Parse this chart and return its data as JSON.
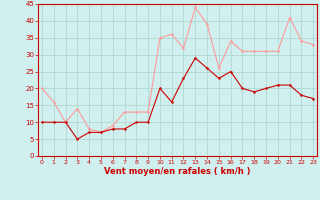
{
  "x": [
    0,
    1,
    2,
    3,
    4,
    5,
    6,
    7,
    8,
    9,
    10,
    11,
    12,
    13,
    14,
    15,
    16,
    17,
    18,
    19,
    20,
    21,
    22,
    23
  ],
  "wind_mean": [
    10,
    10,
    10,
    5,
    7,
    7,
    8,
    8,
    10,
    10,
    20,
    16,
    23,
    29,
    26,
    23,
    25,
    20,
    19,
    20,
    21,
    21,
    18,
    17
  ],
  "wind_gust": [
    20,
    16,
    10,
    14,
    8,
    7,
    9,
    13,
    13,
    13,
    35,
    36,
    32,
    44,
    39,
    26,
    34,
    31,
    31,
    31,
    31,
    41,
    34,
    33
  ],
  "bg_color": "#cff0ee",
  "grid_color": "#b0d8d0",
  "mean_color": "#cc0000",
  "gust_color": "#ff9999",
  "xlabel": "Vent moyen/en rafales ( km/h )",
  "xlabel_color": "#cc0000",
  "tick_color": "#cc0000",
  "ylim": [
    0,
    45
  ],
  "yticks": [
    0,
    5,
    10,
    15,
    20,
    25,
    30,
    35,
    40,
    45
  ],
  "xticks": [
    0,
    1,
    2,
    3,
    4,
    5,
    6,
    7,
    8,
    9,
    10,
    11,
    12,
    13,
    14,
    15,
    16,
    17,
    18,
    19,
    20,
    21,
    22,
    23
  ]
}
